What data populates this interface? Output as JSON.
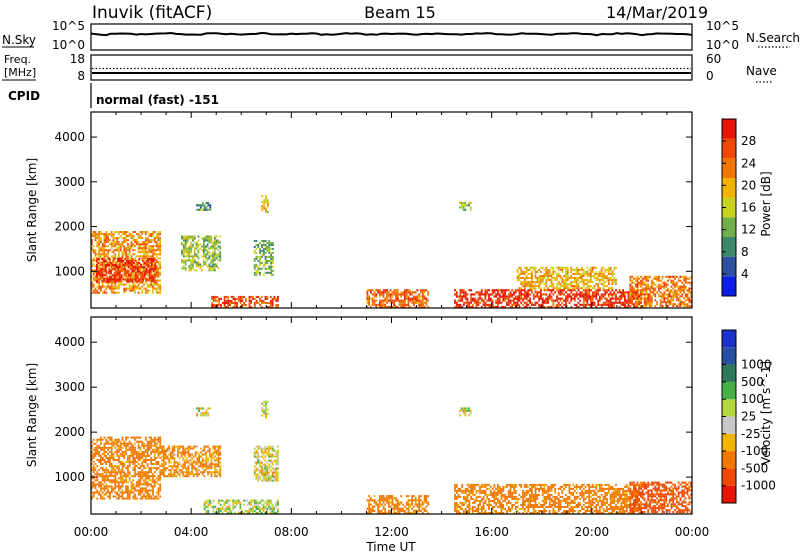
{
  "header": {
    "station": "Inuvik (fitACF)",
    "beam": "Beam 15",
    "date": "14/Mar/2019"
  },
  "nsky_panel": {
    "left_label": "N.Sky",
    "left_ticks": [
      "10^5",
      "10^0"
    ],
    "right_ticks": [
      "10^5",
      "10^0"
    ],
    "right_label": "N.Search"
  },
  "freq_panel": {
    "left_label_1": "Freq.",
    "left_label_2": "[MHz]",
    "left_ticks": [
      "18",
      "8"
    ],
    "right_ticks": [
      "60",
      "0"
    ],
    "right_label": "Nave"
  },
  "cpid": {
    "label": "CPID",
    "value": "normal (fast) -151"
  },
  "colors": {
    "power_scale": [
      "#0a1ee6",
      "#2d4fa0",
      "#3c8a6a",
      "#6fb04a",
      "#c7d21e",
      "#f0b400",
      "#f07800",
      "#f04800",
      "#e61400"
    ],
    "velocity_scale": [
      "#e61400",
      "#f04800",
      "#f07800",
      "#f0b400",
      "#c8c8c8",
      "#b4d840",
      "#46b046",
      "#2d7a5a",
      "#2850a0",
      "#1a32c8"
    ]
  },
  "chart_data": [
    {
      "type": "heatmap",
      "panel": "power",
      "ylabel": "Slant Range [km]",
      "yticks": [
        1000,
        2000,
        3000,
        4000
      ],
      "ylim": [
        180,
        4560
      ],
      "xlim": [
        0,
        24
      ],
      "xticks": [
        "00:00",
        "04:00",
        "08:00",
        "12:00",
        "16:00",
        "20:00",
        "00:00"
      ],
      "colorbar": {
        "label": "Power [dB]",
        "ticks": [
          4,
          8,
          12,
          16,
          20,
          24,
          28
        ],
        "range": [
          0,
          32
        ]
      },
      "regions": [
        {
          "t0": 0.0,
          "t1": 2.8,
          "r0": 500,
          "r1": 1900,
          "value": 22
        },
        {
          "t0": 0.2,
          "t1": 2.6,
          "r0": 750,
          "r1": 1300,
          "value": 29
        },
        {
          "t0": 3.6,
          "t1": 5.2,
          "r0": 1000,
          "r1": 1800,
          "value": 14
        },
        {
          "t0": 4.8,
          "t1": 7.5,
          "r0": 180,
          "r1": 450,
          "value": 27
        },
        {
          "t0": 6.5,
          "t1": 7.3,
          "r0": 900,
          "r1": 1700,
          "value": 12
        },
        {
          "t0": 4.2,
          "t1": 4.8,
          "r0": 2350,
          "r1": 2550,
          "value": 10
        },
        {
          "t0": 6.8,
          "t1": 7.1,
          "r0": 2300,
          "r1": 2700,
          "value": 18
        },
        {
          "t0": 11.0,
          "t1": 13.5,
          "r0": 180,
          "r1": 600,
          "value": 25
        },
        {
          "t0": 14.5,
          "t1": 22.0,
          "r0": 180,
          "r1": 600,
          "value": 29
        },
        {
          "t0": 17.0,
          "t1": 21.0,
          "r0": 600,
          "r1": 1100,
          "value": 20
        },
        {
          "t0": 14.7,
          "t1": 15.2,
          "r0": 2350,
          "r1": 2550,
          "value": 14
        },
        {
          "t0": 21.5,
          "t1": 24.0,
          "r0": 200,
          "r1": 900,
          "value": 24
        }
      ]
    },
    {
      "type": "heatmap",
      "panel": "velocity",
      "ylabel": "Slant Range [km]",
      "xlabel": "Time UT",
      "yticks": [
        1000,
        2000,
        3000,
        4000
      ],
      "ylim": [
        180,
        4560
      ],
      "xlim": [
        0,
        24
      ],
      "xticks": [
        "00:00",
        "04:00",
        "08:00",
        "12:00",
        "16:00",
        "20:00",
        "00:00"
      ],
      "colorbar": {
        "label": "Velocity [m s^-1]",
        "ticks": [
          "-1000",
          "-500",
          "-100",
          "-25",
          "25",
          "100",
          "500",
          "1000"
        ]
      },
      "regions": [
        {
          "t0": 0.0,
          "t1": 2.8,
          "r0": 500,
          "r1": 1900,
          "value": -200
        },
        {
          "t0": 2.8,
          "t1": 5.2,
          "r0": 1000,
          "r1": 1700,
          "value": -150
        },
        {
          "t0": 4.5,
          "t1": 7.5,
          "r0": 180,
          "r1": 500,
          "value": 60
        },
        {
          "t0": 6.5,
          "t1": 7.5,
          "r0": 900,
          "r1": 1700,
          "value": 0
        },
        {
          "t0": 4.2,
          "t1": 4.8,
          "r0": 2350,
          "r1": 2550,
          "value": 0
        },
        {
          "t0": 6.8,
          "t1": 7.1,
          "r0": 2300,
          "r1": 2700,
          "value": 0
        },
        {
          "t0": 11.0,
          "t1": 13.5,
          "r0": 180,
          "r1": 600,
          "value": -200
        },
        {
          "t0": 14.5,
          "t1": 22.0,
          "r0": 180,
          "r1": 850,
          "value": -200
        },
        {
          "t0": 14.7,
          "t1": 15.2,
          "r0": 2350,
          "r1": 2550,
          "value": 0
        },
        {
          "t0": 21.5,
          "t1": 24.0,
          "r0": 200,
          "r1": 900,
          "value": -600
        }
      ]
    }
  ]
}
